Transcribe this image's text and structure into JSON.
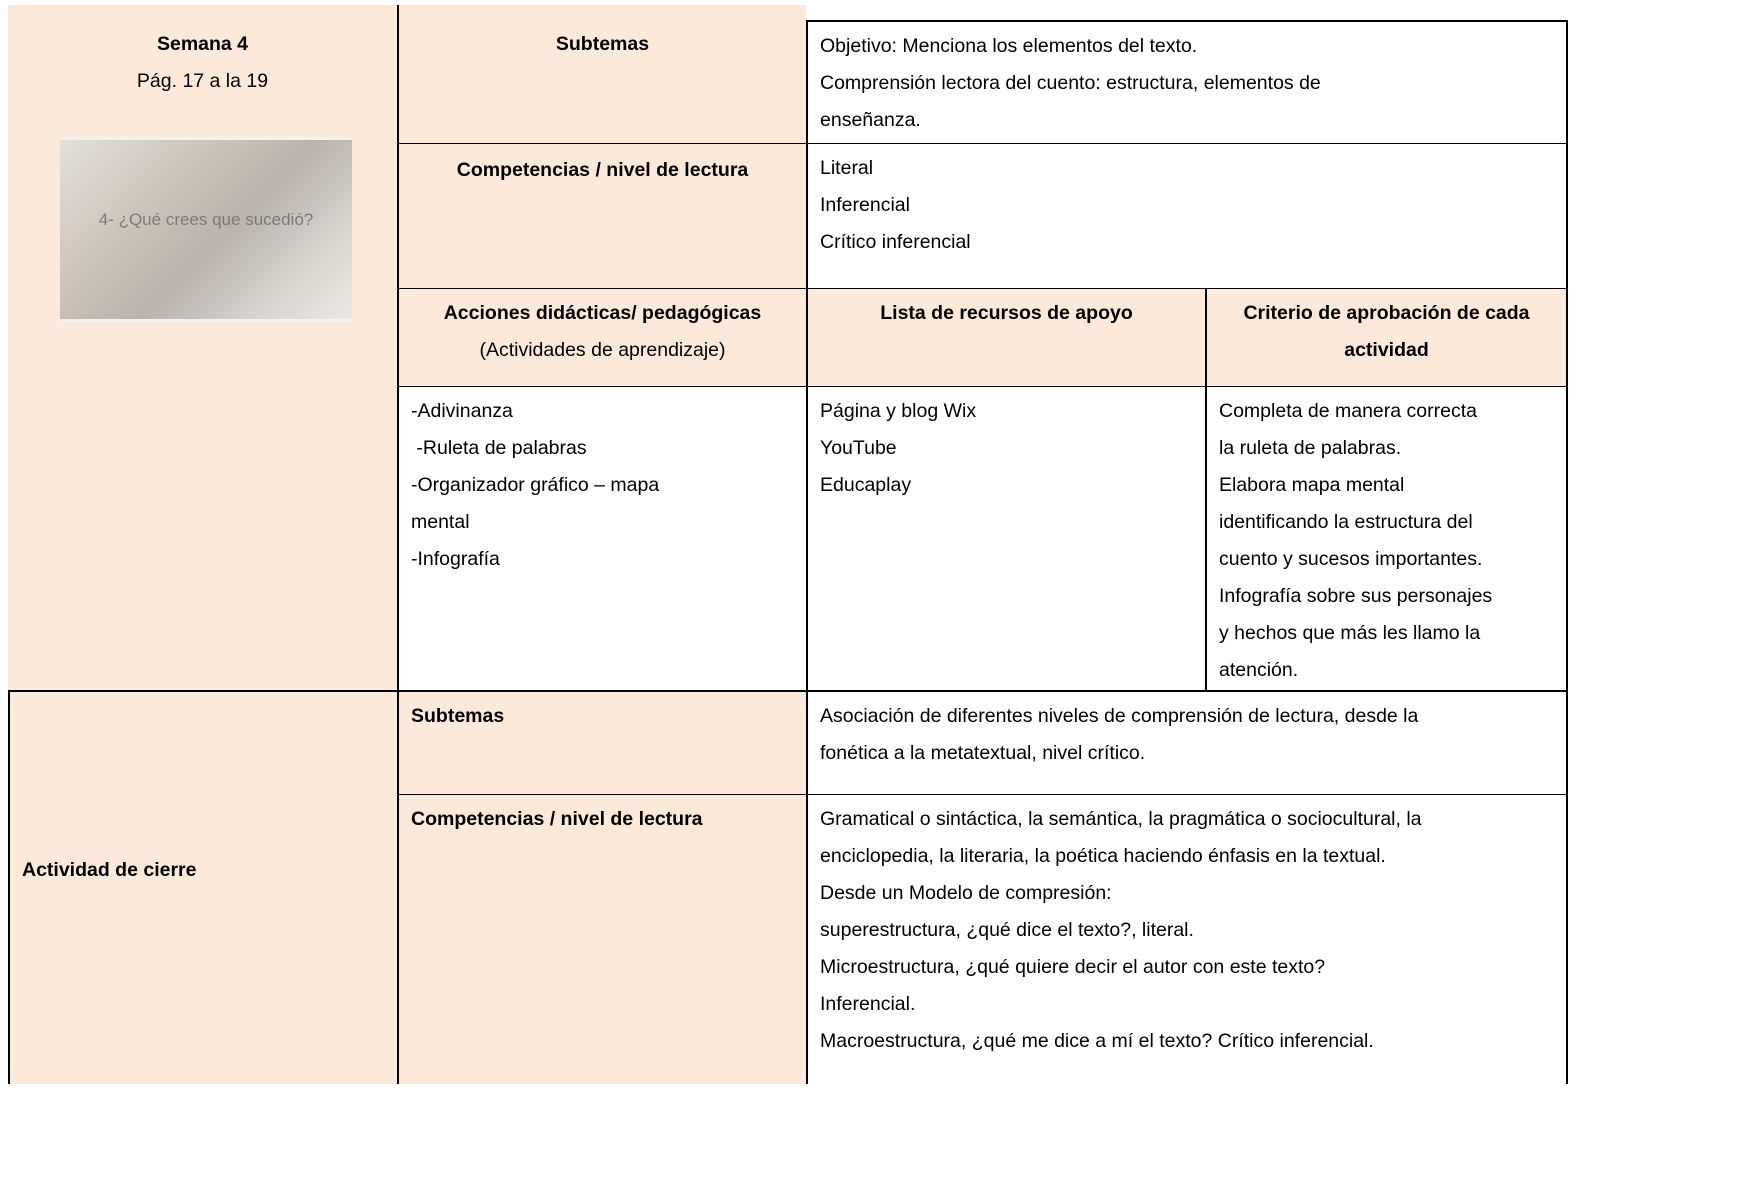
{
  "week": {
    "title": "Semana 4",
    "pages": "Pág. 17 a la 19",
    "image_caption": "4- ¿Qué crees que sucedió?"
  },
  "section1": {
    "subtemas_label": "Subtemas",
    "subtemas": [
      "Objetivo: Menciona los elementos del texto.",
      "Comprensión lectora del cuento: estructura, elementos de",
      "enseñanza."
    ],
    "competencias_label": "Competencias / nivel de lectura",
    "competencias": [
      "Literal",
      "Inferencial",
      "Crítico inferencial"
    ],
    "headers": {
      "acciones": "Acciones didácticas/ pedagógicas",
      "acciones_sub": "(Actividades de aprendizaje)",
      "recursos": "Lista de recursos de apoyo",
      "criterio": [
        "Criterio de aprobación de cada",
        "actividad"
      ]
    },
    "acciones": [
      "-Adivinanza",
      " -Ruleta de palabras",
      "-Organizador gráfico – mapa",
      "mental",
      "-Infografía"
    ],
    "recursos": [
      "Página y blog Wix",
      "YouTube",
      "Educaplay"
    ],
    "criterio": [
      "Completa de manera correcta",
      "la ruleta de palabras.",
      "Elabora mapa mental",
      "identificando la estructura del",
      "cuento y sucesos importantes.",
      "Infografía sobre sus personajes",
      "y hechos que más les llamo la",
      "atención."
    ]
  },
  "section2": {
    "title": "Actividad de cierre",
    "subtemas_label": "Subtemas",
    "subtemas": [
      "Asociación de diferentes niveles de comprensión de lectura, desde la",
      "fonética a la metatextual, nivel crítico."
    ],
    "competencias_label": "Competencias / nivel de lectura",
    "competencias": [
      "Gramatical o sintáctica, la semántica, la pragmática o sociocultural, la",
      "enciclopedia, la literaria, la poética haciendo énfasis en la textual.",
      "Desde un Modelo de compresión:",
      "superestructura, ¿qué dice el texto?, literal.",
      "Microestructura, ¿qué quiere decir el autor con este texto?",
      "Inferencial.",
      "Macroestructura, ¿qué me dice a mí el texto? Crítico inferencial."
    ]
  }
}
